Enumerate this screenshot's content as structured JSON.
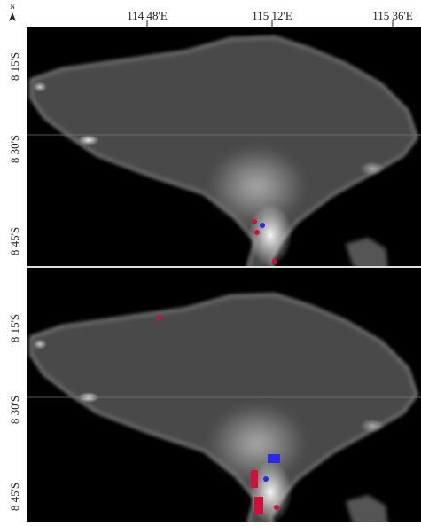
{
  "north_label": "N",
  "lon_labels": [
    "114 48'E",
    "115 12'E",
    "115 36'E"
  ],
  "panels": [
    {
      "lat_labels": [
        "8 15'S",
        "8 30'S",
        "8 45'S"
      ]
    },
    {
      "lat_labels": [
        "8 15'S",
        "8 30'S",
        "8 45'S"
      ]
    }
  ]
}
